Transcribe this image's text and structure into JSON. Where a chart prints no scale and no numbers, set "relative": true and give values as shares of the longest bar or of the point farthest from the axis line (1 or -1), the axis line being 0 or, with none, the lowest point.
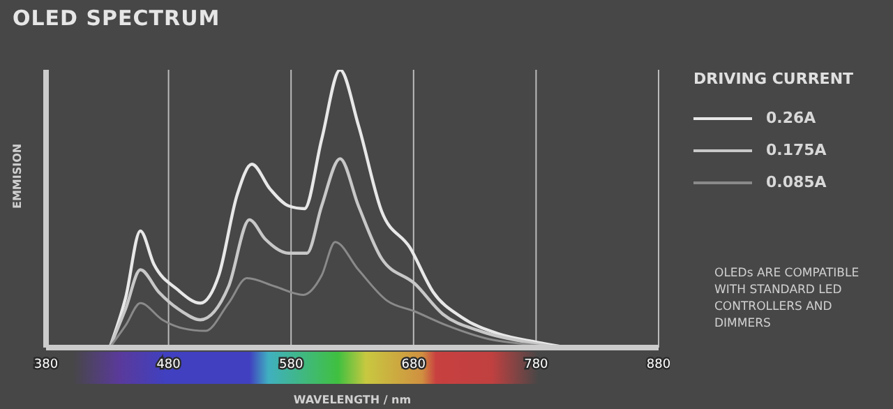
{
  "chart_data": {
    "type": "line",
    "title": "OLED SPECTRUM",
    "xlabel": "WAVELENGTH / nm",
    "ylabel": "EMMISION",
    "legend_title": "DRIVING CURRENT",
    "relative": true,
    "xlim": [
      380,
      880
    ],
    "xticks": [
      380,
      480,
      580,
      680,
      780,
      880
    ],
    "grid": "x",
    "legend": "right",
    "marker": "none",
    "line_style": "solid",
    "annotations": [
      "OLEDs ARE COMPATIBLE WITH STANDARD LED CONTROLLERS AND DIMMERS"
    ],
    "series": [
      {
        "name": "0.26A",
        "color": "#e8e8e8",
        "x": [
          432,
          445,
          457,
          468,
          487,
          506,
          521,
          536,
          548,
          563,
          578,
          591,
          605,
          620,
          635,
          654,
          677,
          696,
          719,
          749,
          780,
          806
        ],
        "values": [
          0,
          0.18,
          0.42,
          0.3,
          0.21,
          0.16,
          0.26,
          0.55,
          0.66,
          0.57,
          0.51,
          0.5,
          0.75,
          1,
          0.8,
          0.49,
          0.36,
          0.2,
          0.11,
          0.05,
          0.02,
          0
        ]
      },
      {
        "name": "0.175A",
        "color": "#c8c8c8",
        "x": [
          432,
          445,
          457,
          472,
          491,
          506,
          529,
          546,
          559,
          578,
          593,
          605,
          620,
          635,
          654,
          681,
          704,
          734,
          772,
          799
        ],
        "values": [
          0,
          0.14,
          0.28,
          0.2,
          0.13,
          0.1,
          0.22,
          0.46,
          0.39,
          0.34,
          0.34,
          0.51,
          0.68,
          0.51,
          0.32,
          0.23,
          0.12,
          0.06,
          0.02,
          0
        ]
      },
      {
        "name": "0.085A",
        "color": "#8a8a8a",
        "x": [
          432,
          445,
          457,
          475,
          491,
          510,
          529,
          544,
          567,
          590,
          605,
          616,
          635,
          658,
          681,
          707,
          742,
          776,
          795
        ],
        "values": [
          0,
          0.08,
          0.16,
          0.1,
          0.07,
          0.06,
          0.16,
          0.25,
          0.22,
          0.19,
          0.26,
          0.38,
          0.28,
          0.17,
          0.13,
          0.08,
          0.03,
          0.01,
          0
        ]
      }
    ]
  }
}
